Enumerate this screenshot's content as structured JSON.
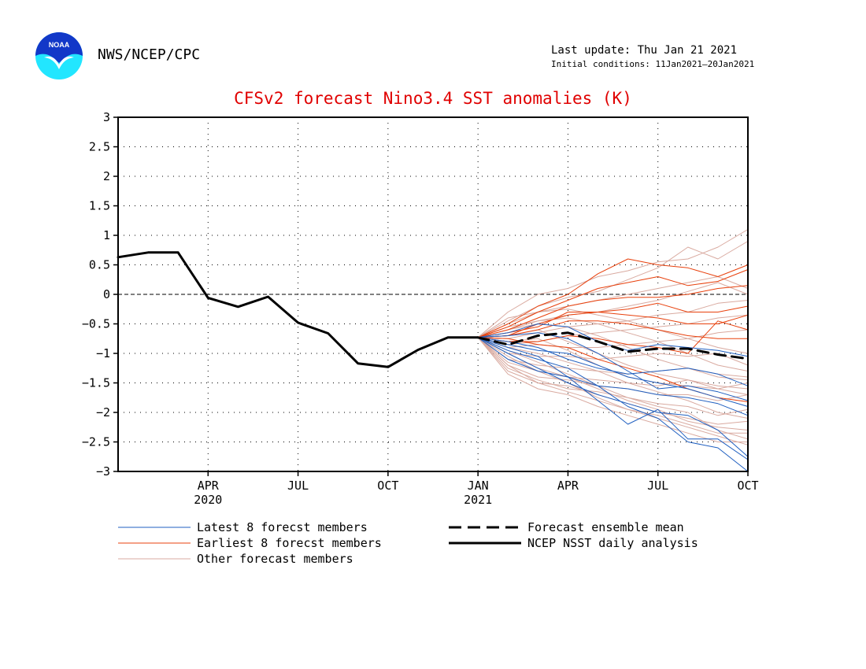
{
  "header": {
    "agency": "NWS/NCEP/CPC",
    "last_update": "Last update: Thu Jan 21 2021",
    "initial_conditions": "Initial conditions: 11Jan2021–20Jan2021",
    "logo_text": "NOAA"
  },
  "colors": {
    "title": "#e00000",
    "latest": "#1f5fc0",
    "earliest": "#e8400c",
    "other": "#d9aaa0",
    "mean": "#000000",
    "analysis": "#000000"
  },
  "chart_data": {
    "type": "line",
    "title": "CFSv2 forecast Nino3.4 SST anomalies (K)",
    "xlabel": "",
    "ylabel": "",
    "ylim": [
      -3,
      3
    ],
    "yticks": [
      {
        "v": 3,
        "label": "3"
      },
      {
        "v": 2.5,
        "label": "2.5"
      },
      {
        "v": 2,
        "label": "2"
      },
      {
        "v": 1.5,
        "label": "1.5"
      },
      {
        "v": 1,
        "label": "1"
      },
      {
        "v": 0.5,
        "label": "0.5"
      },
      {
        "v": 0,
        "label": "0"
      },
      {
        "v": -0.5,
        "label": "−0.5"
      },
      {
        "v": -1,
        "label": "−1"
      },
      {
        "v": -1.5,
        "label": "−1.5"
      },
      {
        "v": -2,
        "label": "−2"
      },
      {
        "v": -2.5,
        "label": "−2.5"
      },
      {
        "v": -3,
        "label": "−3"
      }
    ],
    "xlim": [
      "2020-01",
      "2021-10"
    ],
    "xticks": [
      {
        "x": "2020-04",
        "label": "APR",
        "year": "2020"
      },
      {
        "x": "2020-07",
        "label": "JUL"
      },
      {
        "x": "2020-10",
        "label": "OCT"
      },
      {
        "x": "2021-01",
        "label": "JAN",
        "year": "2021"
      },
      {
        "x": "2021-04",
        "label": "APR"
      },
      {
        "x": "2021-07",
        "label": "JUL"
      },
      {
        "x": "2021-10",
        "label": "OCT"
      }
    ],
    "grid": true,
    "zero_line": true,
    "legend": [
      {
        "key": "latest",
        "label": "Latest 8 forecst members",
        "style": "thin"
      },
      {
        "key": "earliest",
        "label": "Earliest 8 forecst members",
        "style": "thin"
      },
      {
        "key": "other",
        "label": "Other forecast members",
        "style": "thin"
      },
      {
        "key": "mean",
        "label": "Forecast ensemble mean",
        "style": "dashed"
      },
      {
        "key": "analysis",
        "label": "NCEP NSST daily analysis",
        "style": "thick"
      }
    ],
    "forecast_x": [
      "2021-01",
      "2021-02",
      "2021-03",
      "2021-04",
      "2021-05",
      "2021-06",
      "2021-07",
      "2021-08",
      "2021-09",
      "2021-10"
    ],
    "series": [
      {
        "key": "analysis",
        "x": [
          "2020-01",
          "2020-02",
          "2020-03",
          "2020-04",
          "2020-05",
          "2020-06",
          "2020-07",
          "2020-08",
          "2020-09",
          "2020-10",
          "2020-11",
          "2020-12",
          "2021-01"
        ],
        "values": [
          0.63,
          0.71,
          0.71,
          -0.06,
          -0.21,
          -0.04,
          -0.48,
          -0.66,
          -1.17,
          -1.23,
          -0.94,
          -0.73,
          -0.73
        ]
      },
      {
        "key": "mean",
        "values": [
          -0.73,
          -0.85,
          -0.7,
          -0.65,
          -0.8,
          -0.97,
          -0.92,
          -0.92,
          -1.02,
          -1.09
        ]
      },
      {
        "key": "latest",
        "members": [
          [
            -0.73,
            -0.95,
            -1.1,
            -1.25,
            -1.55,
            -1.9,
            -2.1,
            -2.5,
            -2.6,
            -3.0
          ],
          [
            -0.73,
            -0.65,
            -0.5,
            -0.55,
            -0.8,
            -0.95,
            -0.85,
            -0.9,
            -0.95,
            -1.05
          ],
          [
            -0.73,
            -1.0,
            -1.25,
            -1.5,
            -1.7,
            -1.85,
            -2.0,
            -2.05,
            -2.3,
            -2.75
          ],
          [
            -0.73,
            -0.8,
            -0.9,
            -1.1,
            -1.25,
            -1.35,
            -1.3,
            -1.25,
            -1.35,
            -1.55
          ],
          [
            -0.73,
            -0.9,
            -1.05,
            -1.4,
            -1.8,
            -2.2,
            -1.95,
            -2.45,
            -2.45,
            -2.8
          ],
          [
            -0.73,
            -0.7,
            -0.65,
            -0.75,
            -1.0,
            -1.3,
            -1.6,
            -1.55,
            -1.65,
            -1.8
          ],
          [
            -0.73,
            -1.1,
            -1.3,
            -1.4,
            -1.55,
            -1.6,
            -1.7,
            -1.75,
            -1.85,
            -2.05
          ],
          [
            -0.73,
            -0.85,
            -0.95,
            -1.0,
            -1.2,
            -1.4,
            -1.5,
            -1.6,
            -1.75,
            -1.9
          ]
        ]
      },
      {
        "key": "earliest",
        "members": [
          [
            -0.73,
            -0.5,
            -0.2,
            0.0,
            0.35,
            0.6,
            0.5,
            0.45,
            0.3,
            0.5
          ],
          [
            -0.73,
            -0.55,
            -0.3,
            -0.1,
            0.1,
            0.2,
            0.3,
            0.15,
            0.22,
            0.42
          ],
          [
            -0.73,
            -0.6,
            -0.4,
            -0.2,
            -0.1,
            -0.05,
            -0.05,
            0.0,
            0.1,
            0.15
          ],
          [
            -0.73,
            -0.7,
            -0.5,
            -0.35,
            -0.3,
            -0.25,
            -0.15,
            -0.3,
            -0.3,
            -0.2
          ],
          [
            -0.73,
            -0.65,
            -0.55,
            -0.3,
            -0.3,
            -0.35,
            -0.4,
            -0.5,
            -0.5,
            -0.35
          ],
          [
            -0.73,
            -0.7,
            -0.6,
            -0.45,
            -0.45,
            -0.5,
            -0.6,
            -0.7,
            -0.75,
            -0.75
          ],
          [
            -0.73,
            -0.8,
            -0.8,
            -0.7,
            -0.75,
            -0.85,
            -0.9,
            -1.0,
            -0.45,
            -0.6
          ],
          [
            -0.73,
            -0.75,
            -0.85,
            -0.9,
            -1.1,
            -1.25,
            -1.4,
            -1.6,
            -1.75,
            -1.82
          ]
        ]
      },
      {
        "key": "other",
        "members": [
          [
            -0.73,
            -0.3,
            0.0,
            0.1,
            0.3,
            0.4,
            0.55,
            0.6,
            0.8,
            1.1
          ],
          [
            -0.73,
            -0.45,
            -0.2,
            -0.05,
            0.05,
            0.25,
            0.45,
            0.8,
            0.6,
            0.9
          ],
          [
            -0.73,
            -0.5,
            -0.3,
            -0.2,
            -0.1,
            0.0,
            0.1,
            0.2,
            0.3,
            0.1
          ],
          [
            -0.73,
            -0.6,
            -0.45,
            -0.35,
            -0.3,
            -0.2,
            -0.1,
            0.05,
            0.2,
            0.0
          ],
          [
            -0.73,
            -0.75,
            -0.65,
            -0.55,
            -0.5,
            -0.45,
            -0.35,
            -0.3,
            -0.15,
            -0.1
          ],
          [
            -0.73,
            -0.85,
            -0.8,
            -0.7,
            -0.65,
            -0.6,
            -0.55,
            -0.5,
            -0.4,
            -0.35
          ],
          [
            -0.73,
            -0.9,
            -0.85,
            -0.9,
            -0.9,
            -0.85,
            -0.8,
            -0.75,
            -0.65,
            -0.6
          ],
          [
            -0.73,
            -1.0,
            -1.05,
            -1.05,
            -1.1,
            -1.05,
            -1.0,
            -1.05,
            -1.0,
            -1.2
          ],
          [
            -0.73,
            -1.1,
            -1.2,
            -1.25,
            -1.3,
            -1.35,
            -1.3,
            -1.25,
            -1.35,
            -1.4
          ],
          [
            -0.73,
            -1.15,
            -1.3,
            -1.4,
            -1.45,
            -1.5,
            -1.55,
            -1.45,
            -1.6,
            -1.5
          ],
          [
            -0.73,
            -1.2,
            -1.4,
            -1.45,
            -1.55,
            -1.6,
            -1.7,
            -1.7,
            -1.8,
            -1.7
          ],
          [
            -0.73,
            -1.25,
            -1.45,
            -1.6,
            -1.65,
            -1.75,
            -1.85,
            -1.9,
            -2.05,
            -1.95
          ],
          [
            -0.73,
            -1.3,
            -1.5,
            -1.55,
            -1.7,
            -1.85,
            -2.0,
            -2.1,
            -2.2,
            -2.15
          ],
          [
            -0.73,
            -1.0,
            -1.25,
            -1.4,
            -1.6,
            -1.8,
            -1.95,
            -2.15,
            -2.25,
            -2.3
          ],
          [
            -0.73,
            -0.95,
            -1.15,
            -1.35,
            -1.55,
            -1.75,
            -1.9,
            -2.0,
            -2.3,
            -2.45
          ],
          [
            -0.73,
            -1.05,
            -1.3,
            -1.5,
            -1.75,
            -1.95,
            -2.1,
            -2.25,
            -2.4,
            -2.55
          ],
          [
            -0.73,
            -0.8,
            -0.75,
            -0.95,
            -1.2,
            -1.4,
            -1.5,
            -1.55,
            -1.6,
            -1.7
          ],
          [
            -0.73,
            -0.7,
            -0.6,
            -0.8,
            -1.0,
            -1.2,
            -1.35,
            -1.45,
            -1.55,
            -1.6
          ],
          [
            -0.73,
            -0.6,
            -0.5,
            -0.55,
            -0.7,
            -0.9,
            -1.1,
            -1.25,
            -1.4,
            -1.45
          ],
          [
            -0.73,
            -0.55,
            -0.45,
            -0.4,
            -0.5,
            -0.65,
            -0.8,
            -1.0,
            -1.2,
            -1.3
          ],
          [
            -0.73,
            -0.4,
            -0.3,
            -0.25,
            -0.35,
            -0.45,
            -0.6,
            -0.75,
            -0.9,
            -1.0
          ],
          [
            -0.73,
            -1.2,
            -1.5,
            -1.65,
            -1.8,
            -1.95,
            -2.05,
            -2.2,
            -2.35,
            -2.35
          ],
          [
            -0.73,
            -1.35,
            -1.6,
            -1.7,
            -1.9,
            -2.05,
            -2.2,
            -2.35,
            -2.5,
            -2.5
          ],
          [
            -0.73,
            -0.9,
            -1.0,
            -1.15,
            -1.3,
            -1.5,
            -1.65,
            -1.8,
            -2.0,
            -2.1
          ]
        ]
      }
    ]
  }
}
